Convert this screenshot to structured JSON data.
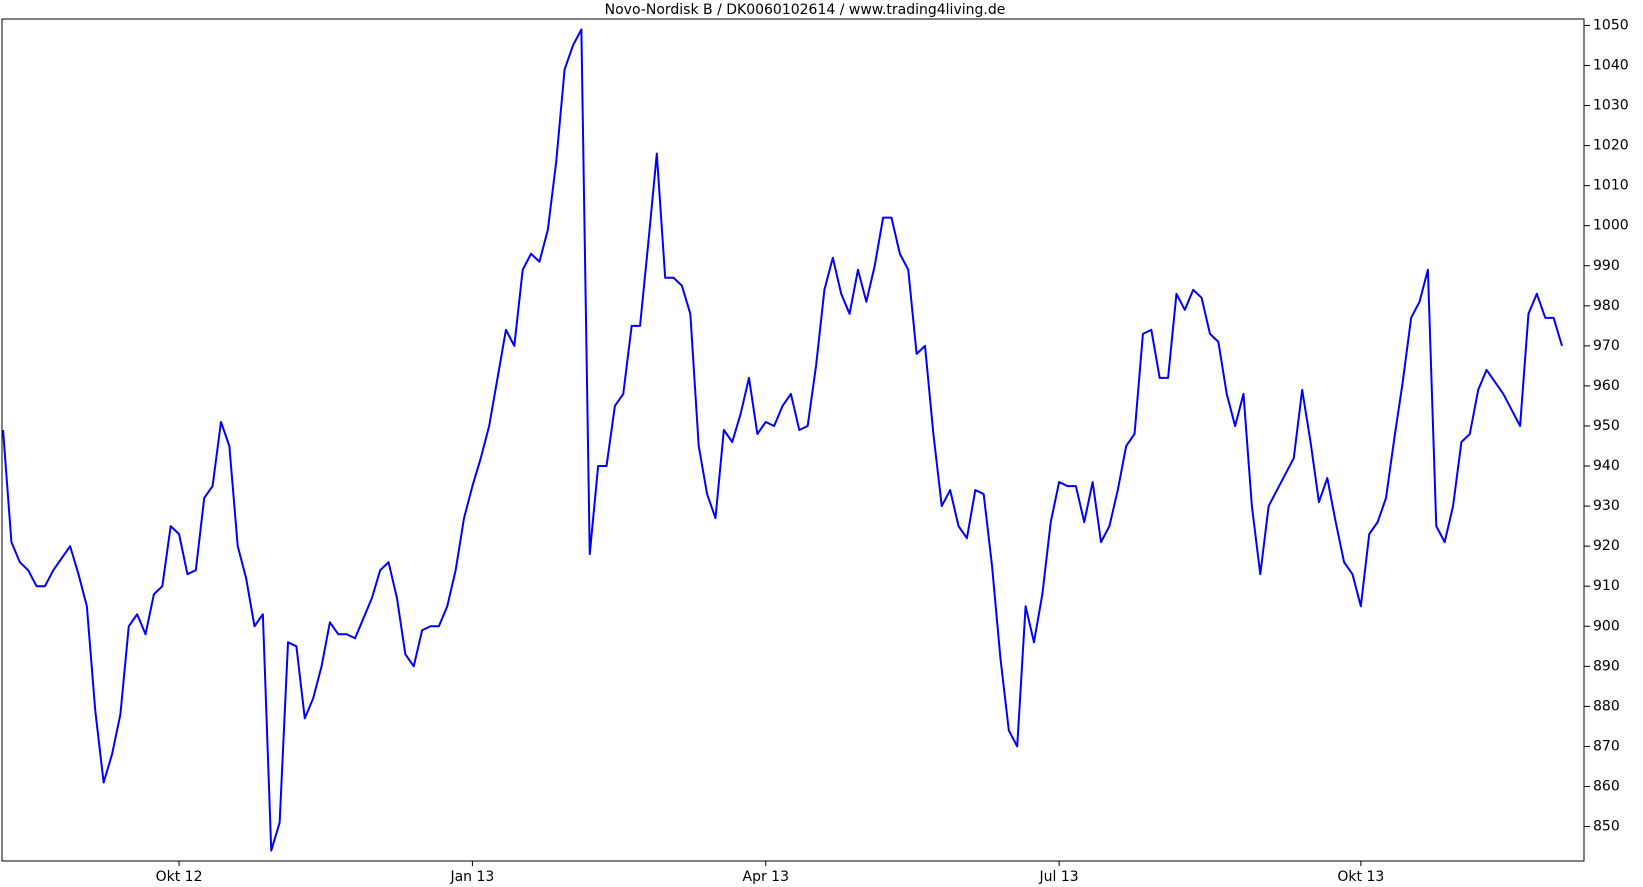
{
  "chart_data": {
    "type": "line",
    "title": "Novo-Nordisk B / DK0060102614 / www.trading4living.de",
    "color": "#0000ff",
    "categories": [
      null,
      null,
      null,
      null,
      null,
      null,
      null,
      null,
      null,
      null,
      null,
      null,
      null,
      null,
      null,
      null,
      null,
      null,
      null,
      null,
      null,
      "Okt 12",
      null,
      null,
      null,
      null,
      null,
      null,
      null,
      null,
      null,
      null,
      null,
      null,
      null,
      null,
      null,
      null,
      null,
      null,
      null,
      null,
      null,
      null,
      null,
      null,
      null,
      null,
      null,
      null,
      null,
      null,
      null,
      null,
      null,
      null,
      "Jan 13",
      null,
      null,
      null,
      null,
      null,
      null,
      null,
      null,
      null,
      null,
      null,
      null,
      null,
      null,
      null,
      null,
      null,
      null,
      null,
      null,
      null,
      null,
      null,
      null,
      null,
      null,
      null,
      null,
      null,
      null,
      null,
      null,
      null,
      null,
      "Apr 13",
      null,
      null,
      null,
      null,
      null,
      null,
      null,
      null,
      null,
      null,
      null,
      null,
      null,
      null,
      null,
      null,
      null,
      null,
      null,
      null,
      null,
      null,
      null,
      null,
      null,
      null,
      null,
      null,
      null,
      null,
      null,
      null,
      null,
      null,
      "Jul 13",
      null,
      null,
      null,
      null,
      null,
      null,
      null,
      null,
      null,
      null,
      null,
      null,
      null,
      null,
      null,
      null,
      null,
      null,
      null,
      null,
      null,
      null,
      null,
      null,
      null,
      null,
      null,
      null,
      null,
      null,
      null,
      null,
      null,
      null,
      null,
      "Okt 13",
      null,
      null,
      null,
      null,
      null,
      null,
      null,
      null,
      null,
      null,
      null,
      null,
      null,
      null,
      null,
      null,
      null,
      null,
      null,
      null,
      null,
      null,
      null,
      null
    ],
    "values": [
      949,
      921,
      916,
      914,
      910,
      910,
      914,
      917,
      920,
      913,
      905,
      879,
      861,
      868,
      878,
      900,
      903,
      898,
      908,
      910,
      925,
      923,
      913,
      914,
      932,
      935,
      951,
      945,
      920,
      912,
      900,
      903,
      844,
      851,
      896,
      895,
      877,
      882,
      890,
      901,
      898,
      898,
      897,
      902,
      907,
      914,
      916,
      907,
      893,
      890,
      899,
      900,
      900,
      905,
      914,
      927,
      935,
      942,
      950,
      962,
      974,
      970,
      989,
      993,
      991,
      999,
      1016,
      1039,
      1045,
      1049,
      918,
      940,
      940,
      955,
      958,
      975,
      975,
      996,
      1018,
      987,
      987,
      985,
      978,
      945,
      933,
      927,
      949,
      946,
      953,
      962,
      948,
      951,
      950,
      955,
      958,
      949,
      950,
      965,
      984,
      992,
      983,
      978,
      989,
      981,
      990,
      1002,
      1002,
      993,
      989,
      968,
      970,
      948,
      930,
      934,
      925,
      922,
      934,
      933,
      915,
      892,
      874,
      870,
      905,
      896,
      908,
      926,
      936,
      935,
      935,
      926,
      936,
      921,
      925,
      934,
      945,
      948,
      973,
      974,
      962,
      962,
      983,
      979,
      984,
      982,
      973,
      971,
      958,
      950,
      958,
      930,
      913,
      930,
      934,
      938,
      942,
      959,
      946,
      931,
      937,
      926,
      916,
      913,
      905,
      923,
      926,
      932,
      947,
      961,
      977,
      981,
      989,
      925,
      921,
      930,
      946,
      948,
      959,
      964,
      961,
      958,
      954,
      950,
      978,
      983,
      977,
      977,
      970
    ],
    "ylim": [
      841.4,
      1051.6
    ],
    "yticks": [
      850,
      860,
      870,
      880,
      890,
      900,
      910,
      920,
      930,
      940,
      950,
      960,
      970,
      980,
      990,
      1000,
      1010,
      1020,
      1030,
      1040,
      1050
    ]
  }
}
